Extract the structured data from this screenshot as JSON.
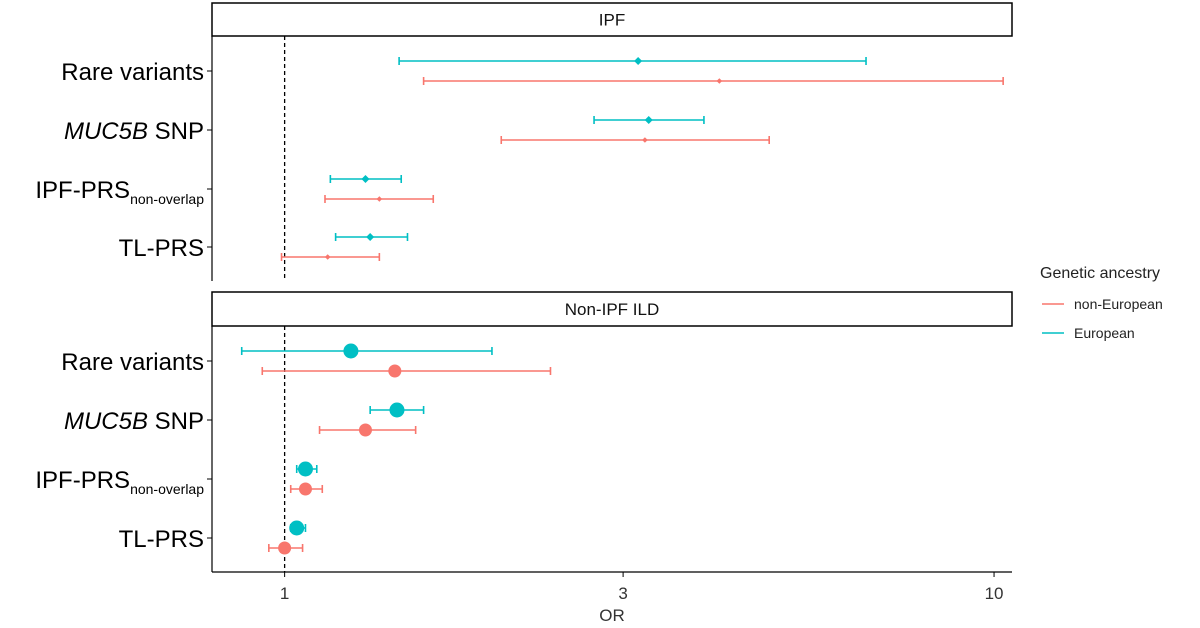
{
  "chart_data": {
    "type": "forest",
    "xlabel": "OR",
    "x_scale": "log10",
    "xlim": [
      0.79,
      10.6
    ],
    "x_ticks": [
      {
        "value": 1,
        "label": "1"
      },
      {
        "value": 3,
        "label": "3"
      },
      {
        "value": 10,
        "label": "10"
      }
    ],
    "reference_line": 1,
    "legend": {
      "title": "Genetic ancestry",
      "position": "right",
      "entries": [
        {
          "key": "nonEuropean",
          "label": "non-European",
          "color": "#F8766D"
        },
        {
          "key": "European",
          "label": "European",
          "color": "#00BFC4"
        }
      ]
    },
    "row_labels": [
      {
        "pre": "",
        "italic": "",
        "main": "Rare variants",
        "sub": ""
      },
      {
        "pre": "",
        "italic": "MUC5B",
        "main": " SNP",
        "sub": ""
      },
      {
        "pre": "",
        "italic": "",
        "main": "IPF-PRS",
        "sub": "non-overlap"
      },
      {
        "pre": "",
        "italic": "",
        "main": "TL-PRS",
        "sub": ""
      }
    ],
    "panels": [
      {
        "title": "IPF",
        "rows": [
          {
            "European": {
              "or": 3.15,
              "lo": 1.45,
              "hi": 6.6
            },
            "nonEuropean": {
              "or": 4.1,
              "lo": 1.57,
              "hi": 10.3
            }
          },
          {
            "European": {
              "or": 3.26,
              "lo": 2.73,
              "hi": 3.9
            },
            "nonEuropean": {
              "or": 3.22,
              "lo": 2.02,
              "hi": 4.82
            }
          },
          {
            "European": {
              "or": 1.3,
              "lo": 1.16,
              "hi": 1.46
            },
            "nonEuropean": {
              "or": 1.36,
              "lo": 1.14,
              "hi": 1.62
            }
          },
          {
            "European": {
              "or": 1.32,
              "lo": 1.18,
              "hi": 1.49
            },
            "nonEuropean": {
              "or": 1.15,
              "lo": 0.99,
              "hi": 1.36
            }
          }
        ]
      },
      {
        "title": "Non-IPF ILD",
        "rows": [
          {
            "European": {
              "or": 1.24,
              "lo": 0.87,
              "hi": 1.96
            },
            "nonEuropean": {
              "or": 1.43,
              "lo": 0.93,
              "hi": 2.37
            }
          },
          {
            "European": {
              "or": 1.44,
              "lo": 1.32,
              "hi": 1.57
            },
            "nonEuropean": {
              "or": 1.3,
              "lo": 1.12,
              "hi": 1.53
            }
          },
          {
            "European": {
              "or": 1.07,
              "lo": 1.04,
              "hi": 1.11
            },
            "nonEuropean": {
              "or": 1.07,
              "lo": 1.02,
              "hi": 1.13
            }
          },
          {
            "European": {
              "or": 1.04,
              "lo": 1.02,
              "hi": 1.07
            },
            "nonEuropean": {
              "or": 1.0,
              "lo": 0.95,
              "hi": 1.06
            }
          }
        ]
      }
    ]
  }
}
